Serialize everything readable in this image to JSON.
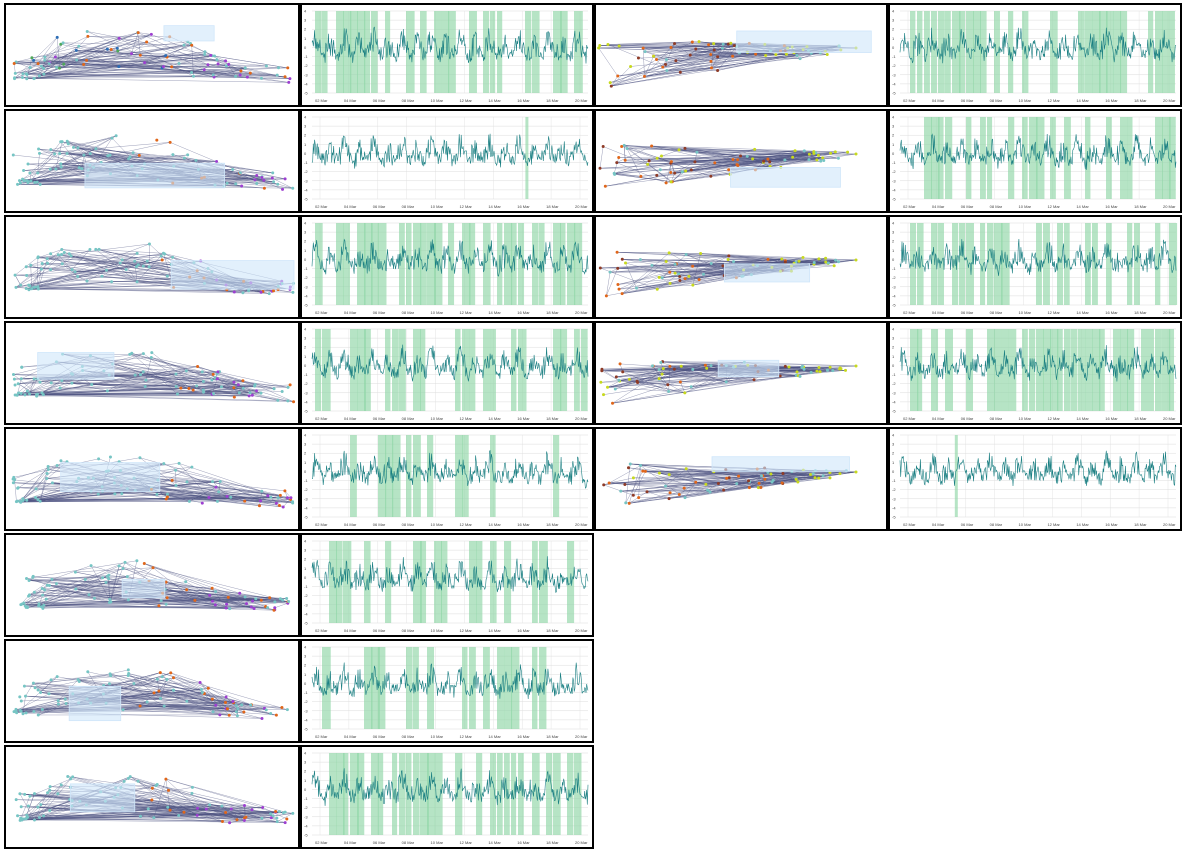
{
  "colors": {
    "background": "#ffffff",
    "border": "#000000",
    "graph_edge": "#4a5180",
    "node_teal": "#76c5c4",
    "node_orange": "#e0661a",
    "node_purple": "#9d3fd0",
    "node_yellow": "#c7d91e",
    "node_brown": "#8e3b27",
    "node_green": "#4fa85a",
    "node_blue": "#2c6db6",
    "selection_box": "#cfe6fa",
    "band": "#8fd5a6",
    "series_line": "#1a7f82",
    "gridline": "#dddddd"
  },
  "chart_data": {
    "type": "line",
    "x_ticks": [
      "02 Mar",
      "04 Mar",
      "06 Mar",
      "08 Mar",
      "10 Mar",
      "12 Mar",
      "14 Mar",
      "16 Mar",
      "18 Mar",
      "20 Mar"
    ],
    "y_ticks": [
      "4",
      "3",
      "2",
      "1",
      "0",
      "-1",
      "-2",
      "-3",
      "-4",
      "-5"
    ],
    "ylim": [
      -5,
      4
    ],
    "grid": true,
    "panels": [
      {
        "col": 0,
        "row": 0,
        "kind": "graph",
        "variant": "colored"
      },
      {
        "col": 1,
        "row": 0,
        "kind": "timeseries",
        "highlight": "dense"
      },
      {
        "col": 0,
        "row": 1,
        "kind": "graph",
        "variant": "wide"
      },
      {
        "col": 1,
        "row": 1,
        "kind": "timeseries",
        "highlight": "single-16mar"
      },
      {
        "col": 0,
        "row": 2,
        "kind": "graph",
        "variant": "wide"
      },
      {
        "col": 1,
        "row": 2,
        "kind": "timeseries",
        "highlight": "dense"
      },
      {
        "col": 0,
        "row": 3,
        "kind": "graph",
        "variant": "wide"
      },
      {
        "col": 1,
        "row": 3,
        "kind": "timeseries",
        "highlight": "dense"
      },
      {
        "col": 0,
        "row": 4,
        "kind": "graph",
        "variant": "wide"
      },
      {
        "col": 1,
        "row": 4,
        "kind": "timeseries",
        "highlight": "sparse"
      },
      {
        "col": 0,
        "row": 5,
        "kind": "graph",
        "variant": "wide"
      },
      {
        "col": 1,
        "row": 5,
        "kind": "timeseries",
        "highlight": "medium"
      },
      {
        "col": 0,
        "row": 6,
        "kind": "graph",
        "variant": "wide"
      },
      {
        "col": 1,
        "row": 6,
        "kind": "timeseries",
        "highlight": "medium"
      },
      {
        "col": 0,
        "row": 7,
        "kind": "graph",
        "variant": "wide"
      },
      {
        "col": 1,
        "row": 7,
        "kind": "timeseries",
        "highlight": "dense"
      },
      {
        "col": 2,
        "row": 0,
        "kind": "graph",
        "variant": "narrow"
      },
      {
        "col": 3,
        "row": 0,
        "kind": "timeseries",
        "highlight": "dense"
      },
      {
        "col": 2,
        "row": 1,
        "kind": "graph",
        "variant": "narrow"
      },
      {
        "col": 3,
        "row": 1,
        "kind": "timeseries",
        "highlight": "dense"
      },
      {
        "col": 2,
        "row": 2,
        "kind": "graph",
        "variant": "narrow"
      },
      {
        "col": 3,
        "row": 2,
        "kind": "timeseries",
        "highlight": "dense"
      },
      {
        "col": 2,
        "row": 3,
        "kind": "graph",
        "variant": "narrow"
      },
      {
        "col": 3,
        "row": 3,
        "kind": "timeseries",
        "highlight": "dense"
      },
      {
        "col": 2,
        "row": 4,
        "kind": "graph",
        "variant": "narrow"
      },
      {
        "col": 3,
        "row": 4,
        "kind": "timeseries",
        "highlight": "single-05mar"
      }
    ]
  }
}
